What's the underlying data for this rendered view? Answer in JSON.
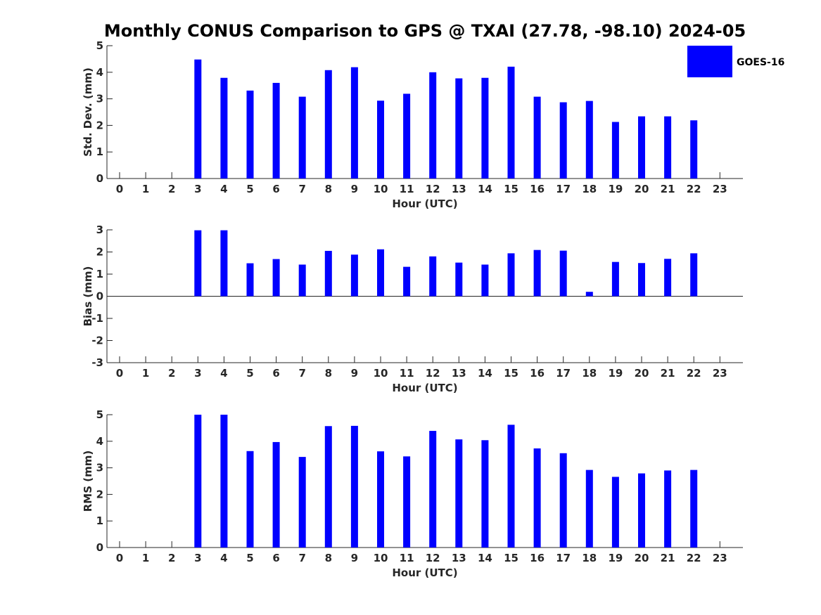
{
  "title": "Monthly CONUS Comparison to GPS @ TXAI (27.78, -98.10) 2024-05",
  "legend": {
    "label": "GOES-16",
    "color": "#0000ff"
  },
  "chart_data": [
    {
      "type": "bar",
      "ylabel": "Std. Dev. (mm)",
      "xlabel": "Hour (UTC)",
      "ylim": [
        0,
        5
      ],
      "yticks": [
        0,
        1,
        2,
        3,
        4,
        5
      ],
      "categories": [
        "0",
        "1",
        "2",
        "3",
        "4",
        "5",
        "6",
        "7",
        "8",
        "9",
        "10",
        "11",
        "12",
        "13",
        "14",
        "15",
        "16",
        "17",
        "18",
        "19",
        "20",
        "21",
        "22",
        "23"
      ],
      "series": [
        {
          "name": "GOES-16",
          "values": [
            null,
            null,
            null,
            4.48,
            3.79,
            3.31,
            3.6,
            3.08,
            4.08,
            4.19,
            2.93,
            3.19,
            4.0,
            3.77,
            3.79,
            4.21,
            3.08,
            2.87,
            2.92,
            2.13,
            2.34,
            2.34,
            2.19,
            null
          ]
        }
      ]
    },
    {
      "type": "bar",
      "ylabel": "Bias (mm)",
      "xlabel": "Hour (UTC)",
      "ylim": [
        -3,
        3
      ],
      "yticks": [
        -3,
        -2,
        -1,
        0,
        1,
        2,
        3
      ],
      "categories": [
        "0",
        "1",
        "2",
        "3",
        "4",
        "5",
        "6",
        "7",
        "8",
        "9",
        "10",
        "11",
        "12",
        "13",
        "14",
        "15",
        "16",
        "17",
        "18",
        "19",
        "20",
        "21",
        "22",
        "23"
      ],
      "series": [
        {
          "name": "GOES-16",
          "values": [
            null,
            null,
            null,
            2.98,
            2.98,
            1.49,
            1.68,
            1.43,
            2.05,
            1.88,
            2.12,
            1.33,
            1.8,
            1.52,
            1.43,
            1.94,
            2.09,
            2.06,
            0.2,
            1.55,
            1.5,
            1.69,
            1.94,
            null
          ]
        }
      ]
    },
    {
      "type": "bar",
      "ylabel": "RMS (mm)",
      "xlabel": "Hour (UTC)",
      "ylim": [
        0,
        5
      ],
      "yticks": [
        0,
        1,
        2,
        3,
        4,
        5
      ],
      "categories": [
        "0",
        "1",
        "2",
        "3",
        "4",
        "5",
        "6",
        "7",
        "8",
        "9",
        "10",
        "11",
        "12",
        "13",
        "14",
        "15",
        "16",
        "17",
        "18",
        "19",
        "20",
        "21",
        "22",
        "23"
      ],
      "series": [
        {
          "name": "GOES-16",
          "values": [
            null,
            null,
            null,
            5.0,
            5.0,
            3.63,
            3.97,
            3.41,
            4.57,
            4.58,
            3.62,
            3.43,
            4.39,
            4.07,
            4.04,
            4.62,
            3.73,
            3.55,
            2.92,
            2.66,
            2.79,
            2.9,
            2.92,
            null
          ]
        }
      ]
    }
  ]
}
